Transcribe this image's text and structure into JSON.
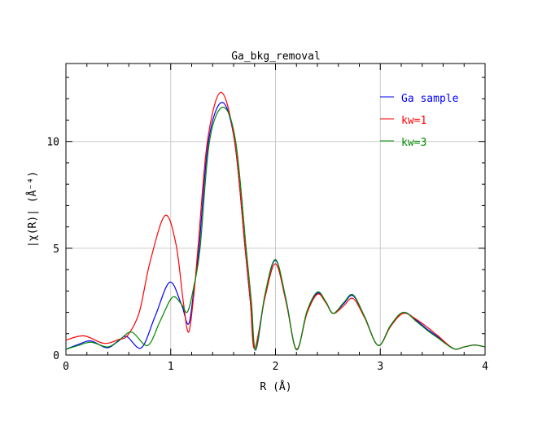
{
  "chart_data": {
    "type": "line",
    "title": "Ga_bkg_removal",
    "xlabel": "R (Å)",
    "ylabel": "|χ(R)| (Å⁻⁴)",
    "xlim": [
      0,
      4
    ],
    "ylim": [
      0,
      13.65
    ],
    "xticks": [
      0,
      1,
      2,
      3,
      4
    ],
    "yticks": [
      0,
      5,
      10
    ],
    "grid": true,
    "legend_position": "top-right",
    "series": [
      {
        "name": "Ga sample",
        "color": "#0000ff",
        "points": [
          [
            0,
            0.27
          ],
          [
            0.12,
            0.5
          ],
          [
            0.24,
            0.66
          ],
          [
            0.39,
            0.34
          ],
          [
            0.5,
            0.65
          ],
          [
            0.58,
            0.87
          ],
          [
            0.72,
            0.34
          ],
          [
            0.85,
            1.8
          ],
          [
            0.99,
            3.41
          ],
          [
            1.1,
            2.4
          ],
          [
            1.17,
            1.45
          ],
          [
            1.22,
            3.0
          ],
          [
            1.27,
            5
          ],
          [
            1.36,
            10
          ],
          [
            1.49,
            11.83
          ],
          [
            1.61,
            10
          ],
          [
            1.71,
            5
          ],
          [
            1.76,
            2.5
          ],
          [
            1.81,
            0.23
          ],
          [
            1.9,
            2.8
          ],
          [
            2.0,
            4.43
          ],
          [
            2.1,
            2.6
          ],
          [
            2.2,
            0.25
          ],
          [
            2.3,
            2.0
          ],
          [
            2.4,
            2.9
          ],
          [
            2.48,
            2.5
          ],
          [
            2.55,
            1.95
          ],
          [
            2.65,
            2.4
          ],
          [
            2.74,
            2.78
          ],
          [
            2.85,
            1.8
          ],
          [
            2.98,
            0.45
          ],
          [
            3.1,
            1.4
          ],
          [
            3.22,
            2.0
          ],
          [
            3.35,
            1.6
          ],
          [
            3.45,
            1.2
          ],
          [
            3.55,
            0.85
          ],
          [
            3.7,
            0.3
          ],
          [
            3.8,
            0.38
          ],
          [
            3.9,
            0.47
          ],
          [
            4.0,
            0.38
          ]
        ]
      },
      {
        "name": "kw=1",
        "color": "#ff0000",
        "points": [
          [
            0,
            0.7
          ],
          [
            0.17,
            0.9
          ],
          [
            0.36,
            0.55
          ],
          [
            0.5,
            0.72
          ],
          [
            0.59,
            0.93
          ],
          [
            0.7,
            2.0
          ],
          [
            0.8,
            4.3
          ],
          [
            0.945,
            6.53
          ],
          [
            1.05,
            5.2
          ],
          [
            1.12,
            2.5
          ],
          [
            1.17,
            1.07
          ],
          [
            1.22,
            2.8
          ],
          [
            1.26,
            5
          ],
          [
            1.35,
            10
          ],
          [
            1.48,
            12.3
          ],
          [
            1.61,
            10
          ],
          [
            1.71,
            5
          ],
          [
            1.76,
            2.5
          ],
          [
            1.8,
            0.3
          ],
          [
            1.9,
            2.7
          ],
          [
            2.0,
            4.27
          ],
          [
            2.1,
            2.5
          ],
          [
            2.2,
            0.28
          ],
          [
            2.3,
            1.95
          ],
          [
            2.4,
            2.85
          ],
          [
            2.48,
            2.45
          ],
          [
            2.55,
            1.95
          ],
          [
            2.65,
            2.3
          ],
          [
            2.74,
            2.65
          ],
          [
            2.85,
            1.75
          ],
          [
            2.98,
            0.45
          ],
          [
            3.1,
            1.35
          ],
          [
            3.22,
            1.95
          ],
          [
            3.35,
            1.65
          ],
          [
            3.45,
            1.3
          ],
          [
            3.55,
            0.9
          ],
          [
            3.7,
            0.3
          ],
          [
            3.8,
            0.38
          ],
          [
            3.9,
            0.47
          ],
          [
            4.0,
            0.38
          ]
        ]
      },
      {
        "name": "kw=3",
        "color": "#008800",
        "points": [
          [
            0,
            0.27
          ],
          [
            0.12,
            0.45
          ],
          [
            0.24,
            0.6
          ],
          [
            0.4,
            0.38
          ],
          [
            0.52,
            0.75
          ],
          [
            0.63,
            1.07
          ],
          [
            0.78,
            0.45
          ],
          [
            0.9,
            1.6
          ],
          [
            1.015,
            2.7
          ],
          [
            1.1,
            2.4
          ],
          [
            1.16,
            2.02
          ],
          [
            1.22,
            3.2
          ],
          [
            1.28,
            5
          ],
          [
            1.37,
            10
          ],
          [
            1.5,
            11.6
          ],
          [
            1.62,
            10
          ],
          [
            1.72,
            5
          ],
          [
            1.77,
            2.5
          ],
          [
            1.81,
            0.25
          ],
          [
            1.9,
            2.85
          ],
          [
            2.0,
            4.47
          ],
          [
            2.1,
            2.6
          ],
          [
            2.2,
            0.25
          ],
          [
            2.3,
            2.05
          ],
          [
            2.4,
            2.95
          ],
          [
            2.48,
            2.5
          ],
          [
            2.55,
            1.95
          ],
          [
            2.65,
            2.45
          ],
          [
            2.74,
            2.82
          ],
          [
            2.85,
            1.8
          ],
          [
            2.98,
            0.45
          ],
          [
            3.1,
            1.4
          ],
          [
            3.22,
            2.0
          ],
          [
            3.35,
            1.55
          ],
          [
            3.45,
            1.15
          ],
          [
            3.55,
            0.8
          ],
          [
            3.7,
            0.3
          ],
          [
            3.8,
            0.38
          ],
          [
            3.9,
            0.47
          ],
          [
            4.0,
            0.38
          ]
        ]
      }
    ]
  }
}
